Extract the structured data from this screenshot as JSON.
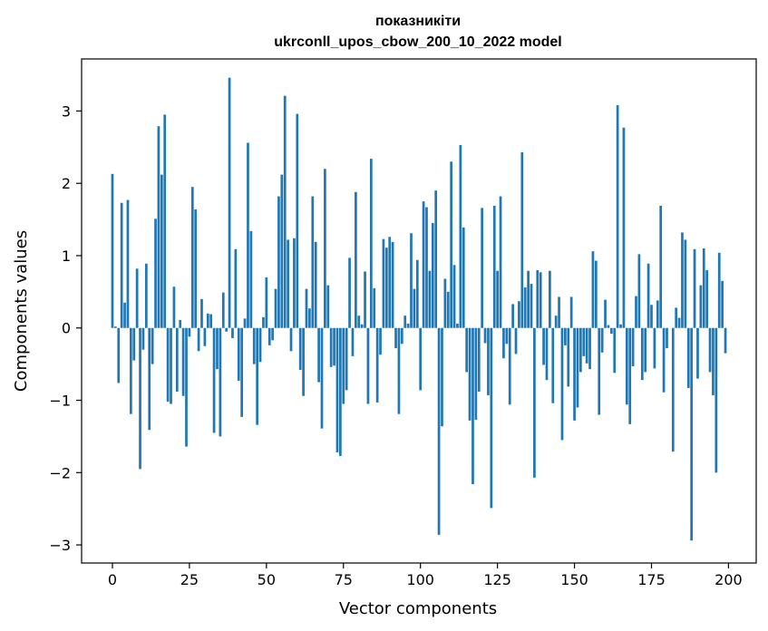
{
  "chart_data": {
    "type": "bar",
    "title_line1": "показникіти",
    "title_line2": "ukrconll_upos_cbow_200_10_2022 model",
    "xlabel": "Vector components",
    "ylabel": "Components values",
    "xlim": [
      -10,
      209
    ],
    "ylim": [
      -3.25,
      3.72
    ],
    "xticks": [
      0,
      25,
      50,
      75,
      100,
      125,
      150,
      175,
      200
    ],
    "yticks": [
      -3,
      -2,
      -1,
      0,
      1,
      2,
      3
    ],
    "ytick_labels": [
      "−3",
      "−2",
      "−1",
      "0",
      "1",
      "2",
      "3"
    ],
    "color": "#1f77b4",
    "values": [
      2.13,
      0.02,
      -0.76,
      1.73,
      0.35,
      1.77,
      -1.19,
      -0.45,
      0.82,
      -1.95,
      -0.3,
      0.89,
      -1.41,
      -0.5,
      1.51,
      2.79,
      2.12,
      2.95,
      -1.02,
      -1.05,
      0.57,
      -0.88,
      0.11,
      -0.94,
      -1.64,
      -0.12,
      1.95,
      1.64,
      -0.32,
      0.4,
      -0.25,
      0.2,
      0.19,
      -1.45,
      -0.57,
      -1.5,
      0.49,
      -0.05,
      3.46,
      -0.14,
      1.09,
      -0.73,
      -1.23,
      0.13,
      2.56,
      1.34,
      -0.5,
      -1.34,
      -0.47,
      0.15,
      0.7,
      -0.24,
      -0.17,
      0.54,
      1.82,
      2.12,
      3.21,
      1.22,
      -0.32,
      1.24,
      2.96,
      -0.58,
      -0.94,
      0.54,
      0.27,
      1.82,
      1.19,
      -0.75,
      -1.39,
      2.2,
      0.59,
      -0.54,
      -0.52,
      -1.72,
      -1.77,
      -1.05,
      -0.86,
      0.97,
      -0.39,
      1.88,
      0.17,
      0.05,
      0.78,
      -1.05,
      2.34,
      0.55,
      -1.03,
      -0.37,
      1.23,
      1.11,
      1.26,
      1.19,
      -0.28,
      -1.19,
      -0.22,
      0.17,
      0.06,
      1.31,
      0.54,
      0.94,
      -0.86,
      1.75,
      1.67,
      0.79,
      1.45,
      1.9,
      -2.86,
      -1.36,
      0.68,
      0.5,
      2.3,
      0.87,
      0.06,
      2.53,
      1.39,
      -0.61,
      -1.28,
      -2.16,
      -1.27,
      -0.88,
      1.66,
      -0.21,
      -0.93,
      -2.49,
      1.69,
      0.79,
      1.82,
      -0.42,
      -0.22,
      -1.06,
      0.33,
      -0.36,
      0.37,
      2.43,
      0.56,
      0.79,
      0.61,
      -2.07,
      0.8,
      0.77,
      -0.51,
      -0.72,
      0.79,
      -1.04,
      0.17,
      0.43,
      -1.55,
      -0.24,
      -0.81,
      0.43,
      -1.28,
      -1.1,
      -0.61,
      -0.39,
      -0.49,
      -0.57,
      1.06,
      0.93,
      -1.2,
      -0.34,
      0.39,
      0.04,
      -0.08,
      -0.62,
      3.08,
      0.05,
      2.77,
      -1.06,
      -1.33,
      -0.53,
      0.44,
      1.02,
      -0.72,
      -0.61,
      0.89,
      0.32,
      -0.56,
      0.38,
      1.69,
      -0.89,
      -0.28,
      0.0,
      -1.71,
      0.28,
      0.14,
      1.32,
      1.22,
      -0.83,
      -2.94,
      1.09,
      -0.7,
      0.59,
      1.1,
      0.8,
      -0.61,
      -0.93,
      -2.0,
      1.04,
      0.65,
      -0.35
    ]
  }
}
